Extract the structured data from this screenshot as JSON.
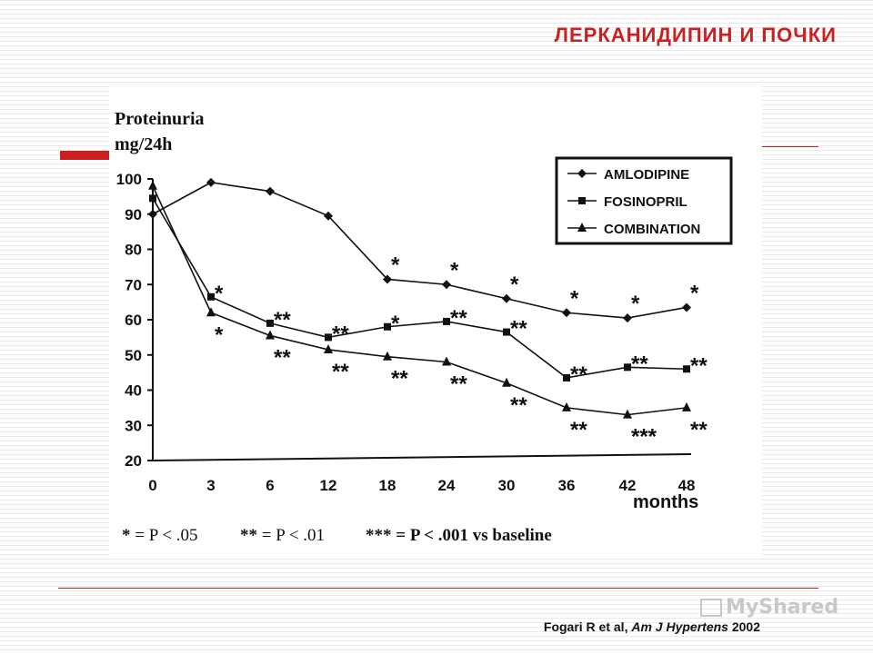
{
  "slide": {
    "title": "ЛЕРКАНИДИПИН И ПОЧКИ",
    "citation_plain": "Fogari R et al, ",
    "citation_journal": "Am J Hypertens",
    "citation_year": " 2002",
    "watermark": "MyShared",
    "accent_color": "#cc1f1f"
  },
  "chart_data": {
    "type": "line",
    "ylabel_line1": "Proteinuria",
    "ylabel_line2": "mg/24h",
    "xlabel": "months",
    "categories": [
      "0",
      "3",
      "6",
      "12",
      "18",
      "24",
      "30",
      "36",
      "42",
      "48"
    ],
    "y_ticks": [
      20,
      30,
      40,
      50,
      60,
      70,
      80,
      90,
      100
    ],
    "ylim": [
      20,
      100
    ],
    "legend_position": "top-right",
    "series": [
      {
        "name": "AMLODIPINE",
        "marker": "diamond",
        "values": [
          90,
          99,
          96.5,
          89.5,
          71.5,
          70,
          66,
          62,
          60.5,
          63.5
        ],
        "significance": [
          "",
          "",
          "",
          "",
          "*",
          "*",
          "*",
          "*",
          "*",
          "*"
        ]
      },
      {
        "name": "FOSINOPRIL",
        "marker": "square",
        "values": [
          94.5,
          66.5,
          59,
          55,
          58,
          59.5,
          56.5,
          43.5,
          46.5,
          46
        ],
        "significance": [
          "",
          "*",
          "**",
          "**",
          "*",
          "**",
          "**",
          "**",
          "**",
          "**"
        ]
      },
      {
        "name": "COMBINATION",
        "marker": "triangle",
        "values": [
          98,
          62,
          55.5,
          51.5,
          49.5,
          48,
          42,
          35,
          33,
          35
        ],
        "significance": [
          "",
          "*",
          "**",
          "**",
          "**",
          "**",
          "**",
          "**",
          "***",
          "**"
        ]
      }
    ],
    "footnote": {
      "s1_sym": "*",
      "s1_txt": " = P < .05",
      "s2_sym": "**",
      "s2_txt": " = P < .01",
      "s3_sym": "***",
      "s3_txt": " = P < .001 vs baseline"
    }
  }
}
